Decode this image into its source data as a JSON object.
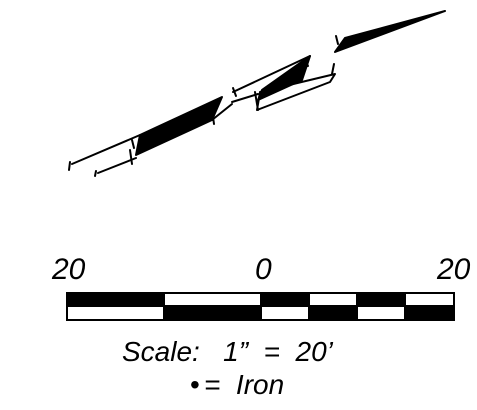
{
  "scale_bar": {
    "left_label": "20",
    "center_label": "0",
    "right_label": "20",
    "scale_text": "Scale:   1”  =  20’",
    "legend_symbol": "•",
    "legend_text": "=  Iron"
  },
  "colors": {
    "ink": "#000000",
    "paper": "#ffffff"
  }
}
